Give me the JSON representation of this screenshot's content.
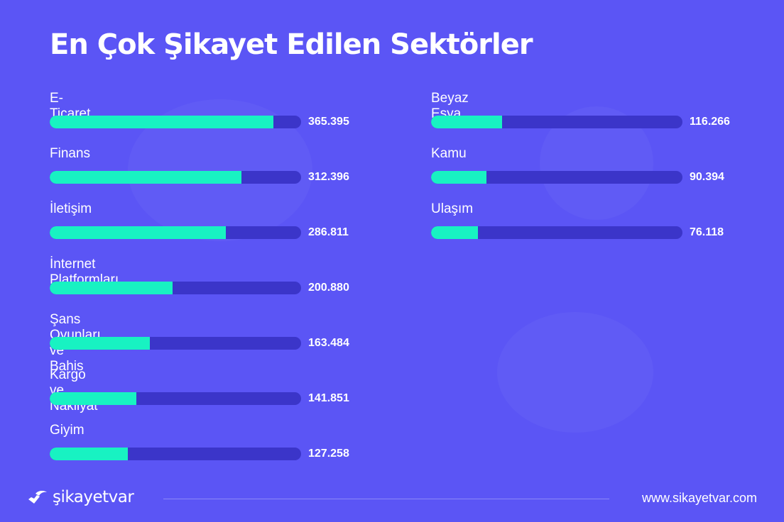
{
  "title": "En Çok Şikayet Edilen Sektörler",
  "colors": {
    "background": "#5b55f5",
    "bar_fill": "#18f2c2",
    "bar_track": "#3b35c9"
  },
  "chart_data": {
    "type": "bar",
    "orientation": "horizontal",
    "title": "En Çok Şikayet Edilen Sektörler",
    "xmax": 410000,
    "categories": [
      "E-Ticaret",
      "Finans",
      "İletişim",
      "İnternet Platformları",
      "Şans Oyunları ve Bahis",
      "Kargo ve Nakliyat",
      "Giyim",
      "Beyaz Eşya",
      "Kamu",
      "Ulaşım"
    ],
    "values": [
      365395,
      312396,
      286811,
      200880,
      163484,
      141851,
      127258,
      116266,
      90394,
      76118
    ],
    "value_labels": [
      "365.395",
      "312.396",
      "286.811",
      "200.880",
      "163.484",
      "141.851",
      "127.258",
      "116.266",
      "90.394",
      "76.118"
    ]
  },
  "footer": {
    "logo_text": "şikayetvar",
    "logo_icon": "sikayetvar-logo-icon",
    "url": "www.sikayetvar.com"
  }
}
